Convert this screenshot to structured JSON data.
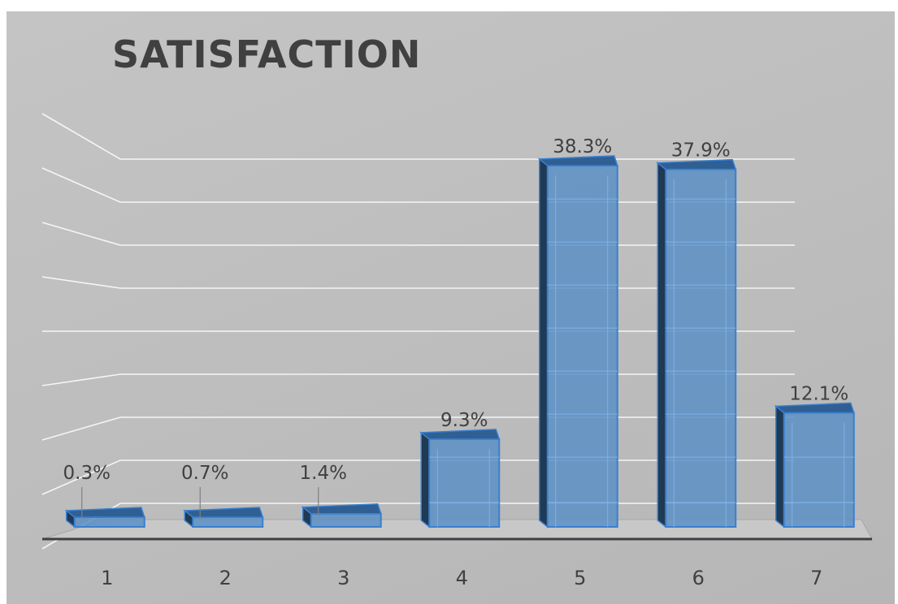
{
  "chart_data": {
    "type": "bar",
    "title": "SATISFACTION",
    "categories": [
      "1",
      "2",
      "3",
      "4",
      "5",
      "6",
      "7"
    ],
    "values": [
      0.3,
      0.7,
      1.4,
      9.3,
      38.3,
      37.9,
      12.1
    ],
    "value_labels": [
      "0.3%",
      "0.7%",
      "1.4%",
      "9.3%",
      "38.3%",
      "37.9%",
      "12.1%"
    ],
    "xlabel": "",
    "ylabel": "",
    "ylim": [
      0,
      40
    ],
    "style": "3d-column",
    "grid": true,
    "legend": "none"
  },
  "colors": {
    "background": "#bfbfbf",
    "bar_front": "#5b8fc4",
    "bar_top": "#2f5f93",
    "bar_side": "#1f3a52",
    "bar_edge": "#3a7fd0",
    "gridline": "#ffffff",
    "floor_line": "#404040",
    "text": "#404040"
  }
}
